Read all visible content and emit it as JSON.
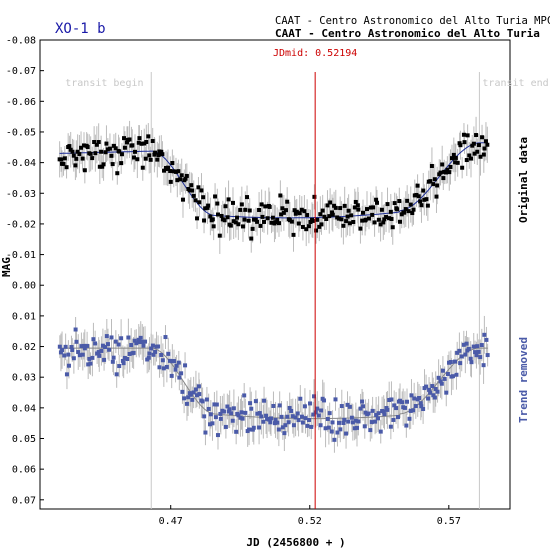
{
  "chart_data": {
    "type": "scatter",
    "title": "XO-1 b",
    "header_line1": "CAAT - Centro Astronomico del Alto Turia MPC-J",
    "header_line2": "CAAT - Centro Astronomico del Alto Turia",
    "xlabel": "JD (2456800 + )",
    "ylabel": "MAG",
    "xlim": [
      0.423,
      0.592
    ],
    "ylim": [
      -0.08,
      0.073
    ],
    "y_inverted": true,
    "x_ticks": [
      0.47,
      0.52,
      0.57
    ],
    "x_tick_labels": [
      "0.47",
      "0.52",
      "0.57"
    ],
    "y_ticks": [
      -0.08,
      -0.07,
      -0.06,
      -0.05,
      -0.04,
      -0.03,
      -0.02,
      -0.01,
      0.0,
      0.01,
      0.02,
      0.03,
      0.04,
      0.05,
      0.06,
      0.07
    ],
    "y_tick_labels": [
      "-0.08",
      "-0.07",
      "-0.06",
      "-0.05",
      "-0.04",
      "-0.03",
      "-0.02",
      "-0.01",
      "0.00",
      "0.01",
      "0.02",
      "0.03",
      "0.04",
      "0.05",
      "0.06",
      "0.07"
    ],
    "transit_begin": {
      "x": 0.463,
      "label": "transit begin"
    },
    "transit_end": {
      "x": 0.581,
      "label": "transit end"
    },
    "jd_mid": {
      "x": 0.52194,
      "label": "JDmid: 0.52194"
    },
    "grid": false,
    "legend": "right side, rotated",
    "series": [
      {
        "name": "Original data",
        "color": "#000000",
        "error_color": "#bbbbbb",
        "baseline": -0.043,
        "depth": 0.0215,
        "scatter": 0.0042,
        "error": 0.0048,
        "trend_start": 0.0,
        "trend_end": -0.0035
      },
      {
        "name": "Trend removed",
        "color": "#4a5aa8",
        "error_color": "#bbbbbb",
        "baseline": 0.0205,
        "depth": 0.0215,
        "scatter": 0.0042,
        "error": 0.0048,
        "trend_start": 0.0,
        "trend_end": 0.0
      }
    ],
    "model_color": "#1f2f99",
    "n_points": 300,
    "x_start": 0.43,
    "x_end": 0.584
  }
}
